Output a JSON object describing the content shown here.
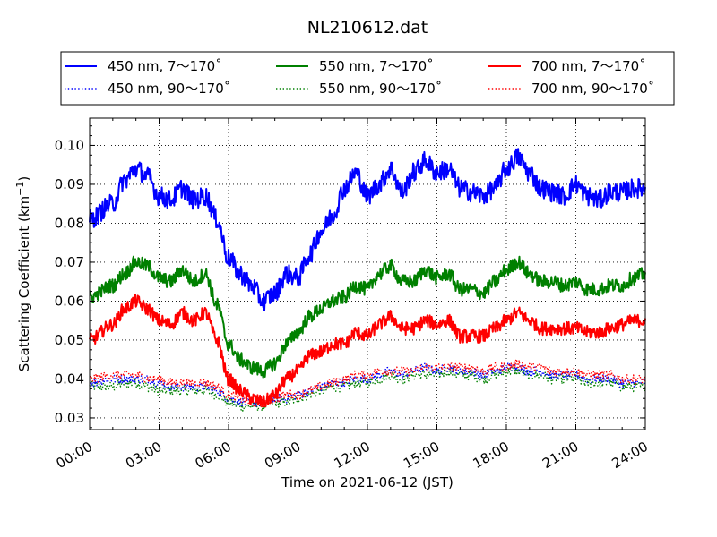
{
  "chart_data": {
    "type": "line",
    "title": "NL210612.dat",
    "xlabel": "Time on 2021-06-12 (JST)",
    "ylabel_main": "Scattering Coefficient (km",
    "ylabel_exp": "−1",
    "ylabel_close": ")",
    "xlim": [
      "00:00",
      "24:00"
    ],
    "ylim": [
      0.027,
      0.107
    ],
    "x_ticks": [
      "00:00",
      "03:00",
      "06:00",
      "09:00",
      "12:00",
      "15:00",
      "18:00",
      "21:00",
      "24:00"
    ],
    "y_ticks": [
      "0.03",
      "0.04",
      "0.05",
      "0.06",
      "0.07",
      "0.08",
      "0.09",
      "0.10"
    ],
    "grid": true,
    "legend_position": "top",
    "knot_hours": [
      0,
      1,
      1.5,
      2,
      2.5,
      3,
      3.5,
      4,
      4.5,
      5,
      5.5,
      6,
      6.5,
      7,
      7.5,
      8,
      8.5,
      9,
      9.5,
      10,
      10.5,
      11,
      11.5,
      12,
      12.5,
      13,
      13.5,
      14,
      14.5,
      15,
      15.5,
      16,
      16.5,
      17,
      17.5,
      18,
      18.5,
      19,
      19.5,
      20,
      20.5,
      21,
      21.5,
      22,
      22.5,
      23,
      23.5,
      24
    ],
    "series": [
      {
        "name": "450 nm, 7～170˚",
        "color": "#0000ff",
        "style": "solid",
        "noise": 0.0025,
        "values": [
          0.081,
          0.085,
          0.091,
          0.094,
          0.092,
          0.087,
          0.086,
          0.089,
          0.086,
          0.087,
          0.081,
          0.071,
          0.067,
          0.064,
          0.06,
          0.062,
          0.067,
          0.066,
          0.072,
          0.078,
          0.082,
          0.089,
          0.093,
          0.087,
          0.09,
          0.094,
          0.088,
          0.093,
          0.096,
          0.093,
          0.094,
          0.089,
          0.088,
          0.087,
          0.089,
          0.094,
          0.097,
          0.093,
          0.089,
          0.088,
          0.087,
          0.09,
          0.087,
          0.086,
          0.088,
          0.088,
          0.089,
          0.089
        ]
      },
      {
        "name": "550 nm, 7～170˚",
        "color": "#008000",
        "style": "solid",
        "noise": 0.0018,
        "values": [
          0.061,
          0.064,
          0.067,
          0.07,
          0.069,
          0.066,
          0.065,
          0.068,
          0.065,
          0.067,
          0.059,
          0.049,
          0.045,
          0.043,
          0.042,
          0.044,
          0.049,
          0.052,
          0.056,
          0.058,
          0.06,
          0.061,
          0.064,
          0.063,
          0.067,
          0.069,
          0.065,
          0.065,
          0.068,
          0.066,
          0.067,
          0.063,
          0.063,
          0.062,
          0.065,
          0.068,
          0.07,
          0.067,
          0.065,
          0.065,
          0.064,
          0.065,
          0.063,
          0.063,
          0.064,
          0.064,
          0.066,
          0.067
        ]
      },
      {
        "name": "700 nm, 7～170˚",
        "color": "#ff0000",
        "style": "solid",
        "noise": 0.0017,
        "values": [
          0.05,
          0.054,
          0.058,
          0.06,
          0.058,
          0.055,
          0.054,
          0.057,
          0.055,
          0.057,
          0.05,
          0.04,
          0.037,
          0.035,
          0.034,
          0.036,
          0.04,
          0.042,
          0.046,
          0.047,
          0.049,
          0.049,
          0.052,
          0.051,
          0.054,
          0.056,
          0.053,
          0.053,
          0.055,
          0.054,
          0.055,
          0.051,
          0.051,
          0.051,
          0.053,
          0.055,
          0.057,
          0.055,
          0.053,
          0.053,
          0.053,
          0.053,
          0.052,
          0.052,
          0.053,
          0.054,
          0.055,
          0.055
        ]
      },
      {
        "name": "450 nm, 90～170˚",
        "color": "#0000ff",
        "style": "dotted",
        "noise": 0.0012,
        "values": [
          0.039,
          0.04,
          0.04,
          0.04,
          0.04,
          0.039,
          0.038,
          0.038,
          0.038,
          0.038,
          0.037,
          0.035,
          0.034,
          0.034,
          0.034,
          0.035,
          0.035,
          0.036,
          0.037,
          0.038,
          0.039,
          0.039,
          0.04,
          0.04,
          0.041,
          0.042,
          0.041,
          0.042,
          0.043,
          0.042,
          0.043,
          0.042,
          0.042,
          0.041,
          0.042,
          0.043,
          0.043,
          0.042,
          0.042,
          0.041,
          0.041,
          0.041,
          0.04,
          0.04,
          0.04,
          0.039,
          0.039,
          0.039
        ]
      },
      {
        "name": "550 nm, 90～170˚",
        "color": "#008000",
        "style": "dotted",
        "noise": 0.0013,
        "values": [
          0.038,
          0.038,
          0.039,
          0.039,
          0.038,
          0.037,
          0.037,
          0.037,
          0.037,
          0.037,
          0.036,
          0.034,
          0.033,
          0.033,
          0.033,
          0.034,
          0.034,
          0.035,
          0.036,
          0.037,
          0.038,
          0.038,
          0.039,
          0.039,
          0.04,
          0.041,
          0.04,
          0.041,
          0.041,
          0.041,
          0.042,
          0.041,
          0.041,
          0.04,
          0.041,
          0.042,
          0.042,
          0.041,
          0.041,
          0.04,
          0.04,
          0.04,
          0.039,
          0.039,
          0.039,
          0.038,
          0.038,
          0.038
        ]
      },
      {
        "name": "700 nm, 90～170˚",
        "color": "#ff0000",
        "style": "dotted",
        "noise": 0.0012,
        "values": [
          0.04,
          0.041,
          0.041,
          0.041,
          0.04,
          0.04,
          0.039,
          0.039,
          0.039,
          0.039,
          0.038,
          0.036,
          0.035,
          0.034,
          0.034,
          0.035,
          0.036,
          0.036,
          0.037,
          0.038,
          0.039,
          0.04,
          0.041,
          0.041,
          0.042,
          0.042,
          0.042,
          0.042,
          0.043,
          0.043,
          0.043,
          0.043,
          0.043,
          0.042,
          0.043,
          0.043,
          0.044,
          0.043,
          0.043,
          0.042,
          0.042,
          0.042,
          0.041,
          0.041,
          0.041,
          0.04,
          0.04,
          0.04
        ]
      }
    ]
  }
}
